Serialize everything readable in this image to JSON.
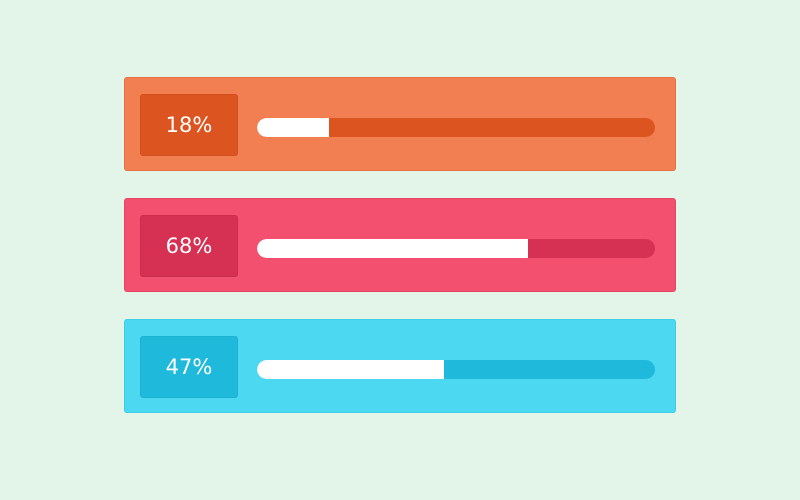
{
  "background": "#e3f5e8",
  "progress_cards": [
    {
      "label": "18%",
      "value": 18,
      "card_color": "#f27f52",
      "accent_color": "#dc5520"
    },
    {
      "label": "68%",
      "value": 68,
      "card_color": "#f2506e",
      "accent_color": "#d63052"
    },
    {
      "label": "47%",
      "value": 47,
      "card_color": "#4dd8f2",
      "accent_color": "#1fbadb"
    }
  ]
}
